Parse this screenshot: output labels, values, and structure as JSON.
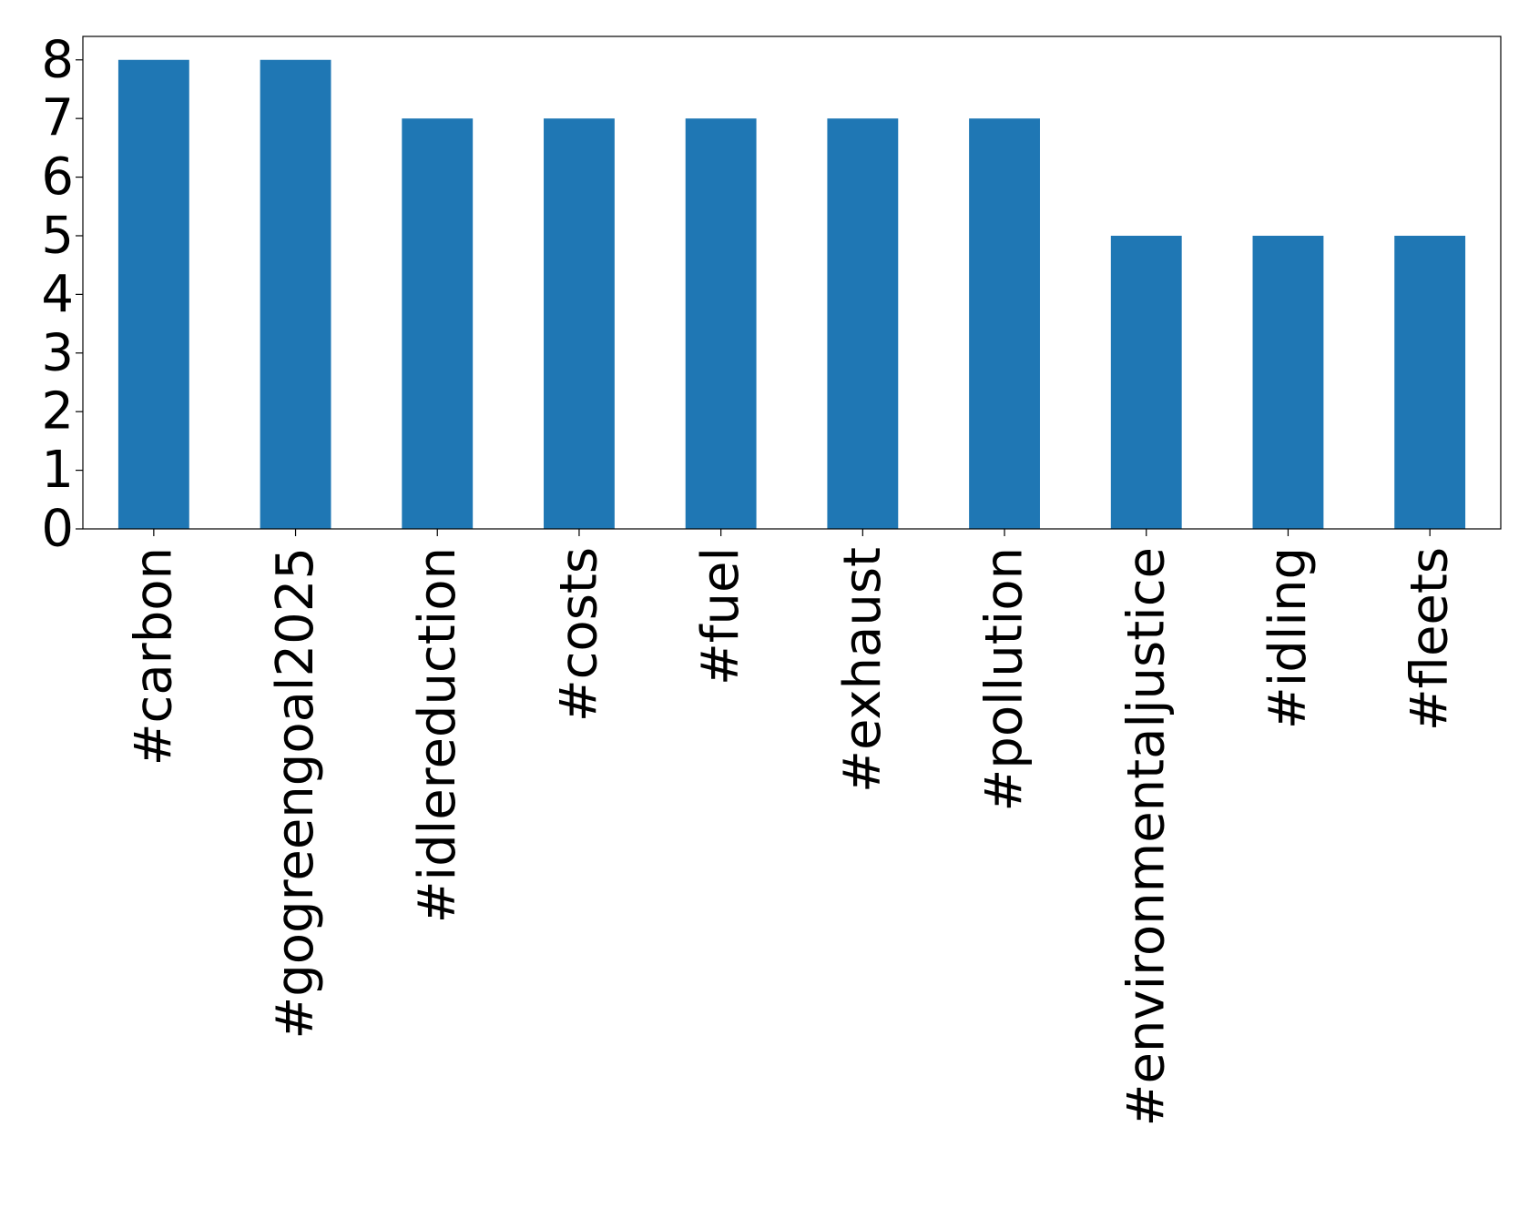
{
  "chart_data": {
    "type": "bar",
    "categories": [
      "#carbon",
      "#gogreengoal2025",
      "#idlereduction",
      "#costs",
      "#fuel",
      "#exhaust",
      "#pollution",
      "#environmentaljustice",
      "#idling",
      "#fleets"
    ],
    "values": [
      8,
      8,
      7,
      7,
      7,
      7,
      7,
      5,
      5,
      5
    ],
    "color": "#1f77b4",
    "ylim": [
      0,
      8.4
    ],
    "yticks": [
      0,
      1,
      2,
      3,
      4,
      5,
      6,
      7,
      8
    ],
    "grid": false
  }
}
